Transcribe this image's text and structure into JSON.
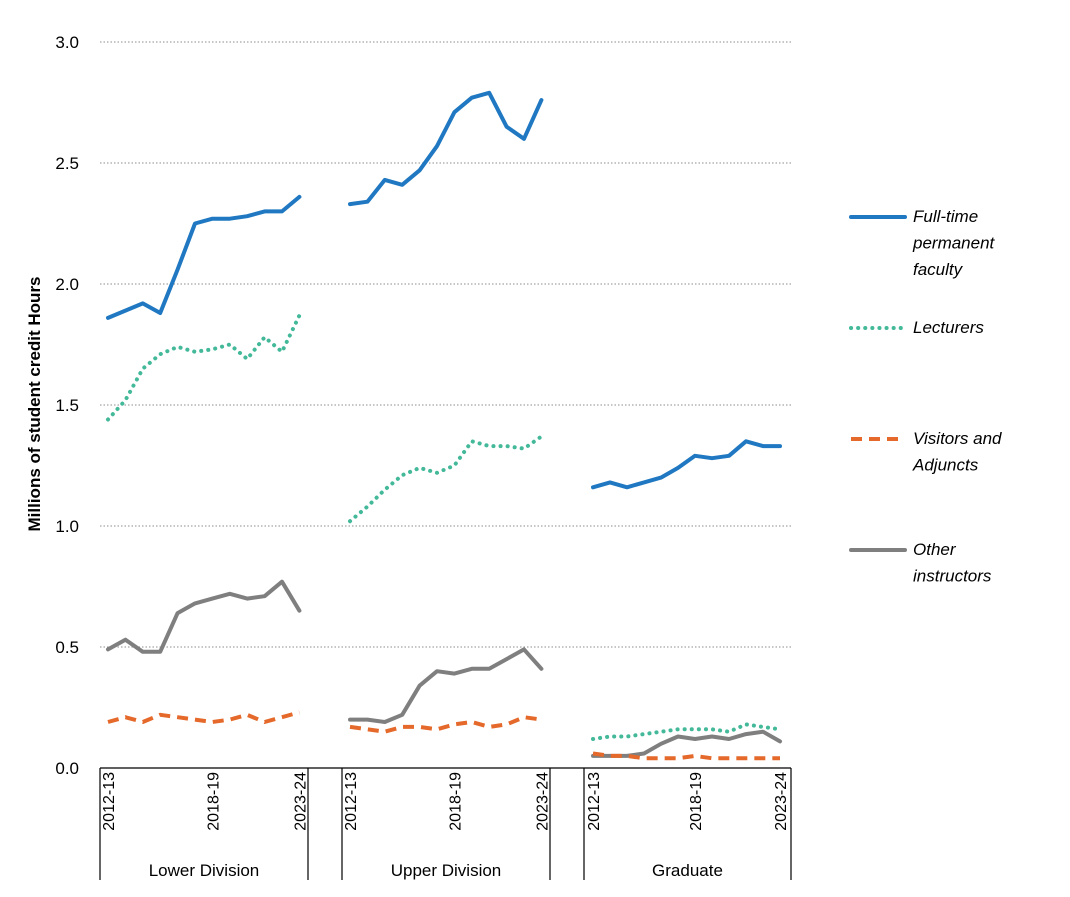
{
  "chart_data": {
    "type": "line",
    "title": "",
    "ylabel": "Millions of student credit Hours",
    "xlabel": "",
    "ylim": [
      0,
      3.0
    ],
    "yticks": [
      "0.0",
      "0.5",
      "1.0",
      "1.5",
      "2.0",
      "2.5",
      "3.0"
    ],
    "grid": "horizontal dotted",
    "legend_position": "right",
    "years": [
      "2012-13",
      "2013-14",
      "2014-15",
      "2015-16",
      "2016-17",
      "2017-18",
      "2018-19",
      "2019-20",
      "2020-21",
      "2021-22",
      "2022-23",
      "2023-24"
    ],
    "tick_labels_shown": [
      "2012-13",
      "2018-19",
      "2023-24"
    ],
    "groups": [
      {
        "name": "Lower Division",
        "series": [
          {
            "name": "Full-time permanent faculty",
            "values": [
              1.86,
              1.89,
              1.92,
              1.88,
              2.06,
              2.25,
              2.27,
              2.27,
              2.28,
              2.3,
              2.3,
              2.36
            ]
          },
          {
            "name": "Lecturers",
            "values": [
              1.44,
              1.52,
              1.65,
              1.71,
              1.74,
              1.72,
              1.73,
              1.75,
              1.69,
              1.78,
              1.72,
              1.87
            ]
          },
          {
            "name": "Visitors and Adjuncts",
            "values": [
              0.19,
              0.21,
              0.19,
              0.22,
              0.21,
              0.2,
              0.19,
              0.2,
              0.22,
              0.19,
              0.21,
              0.23
            ]
          },
          {
            "name": "Other instructors",
            "values": [
              0.49,
              0.53,
              0.48,
              0.48,
              0.64,
              0.68,
              0.7,
              0.72,
              0.7,
              0.71,
              0.77,
              0.65
            ]
          }
        ]
      },
      {
        "name": "Upper Division",
        "series": [
          {
            "name": "Full-time permanent faculty",
            "values": [
              2.33,
              2.34,
              2.43,
              2.41,
              2.47,
              2.57,
              2.71,
              2.77,
              2.79,
              2.65,
              2.6,
              2.76
            ]
          },
          {
            "name": "Lecturers",
            "values": [
              1.02,
              1.08,
              1.15,
              1.21,
              1.24,
              1.22,
              1.25,
              1.35,
              1.33,
              1.33,
              1.32,
              1.37
            ]
          },
          {
            "name": "Visitors and Adjuncts",
            "values": [
              0.17,
              0.16,
              0.15,
              0.17,
              0.17,
              0.16,
              0.18,
              0.19,
              0.17,
              0.18,
              0.21,
              0.2
            ]
          },
          {
            "name": "Other instructors",
            "values": [
              0.2,
              0.2,
              0.19,
              0.22,
              0.34,
              0.4,
              0.39,
              0.41,
              0.41,
              0.45,
              0.49,
              0.41
            ]
          }
        ]
      },
      {
        "name": "Graduate",
        "series": [
          {
            "name": "Full-time permanent faculty",
            "values": [
              1.16,
              1.18,
              1.16,
              1.18,
              1.2,
              1.24,
              1.29,
              1.28,
              1.29,
              1.35,
              1.33,
              1.33
            ]
          },
          {
            "name": "Lecturers",
            "values": [
              0.12,
              0.13,
              0.13,
              0.14,
              0.15,
              0.16,
              0.16,
              0.16,
              0.15,
              0.18,
              0.17,
              0.16
            ]
          },
          {
            "name": "Visitors and Adjuncts",
            "values": [
              0.06,
              0.05,
              0.05,
              0.04,
              0.04,
              0.04,
              0.05,
              0.04,
              0.04,
              0.04,
              0.04,
              0.04
            ]
          },
          {
            "name": "Other instructors",
            "values": [
              0.05,
              0.05,
              0.05,
              0.06,
              0.1,
              0.13,
              0.12,
              0.13,
              0.12,
              0.14,
              0.15,
              0.11
            ]
          }
        ]
      }
    ],
    "legend": [
      {
        "name": "Full-time permanent faculty",
        "lines": [
          "Full-time",
          "permanent",
          "faculty"
        ],
        "color": "#1f78c1",
        "style": "solid"
      },
      {
        "name": "Lecturers",
        "lines": [
          "Lecturers"
        ],
        "color": "#43b99a",
        "style": "dotted"
      },
      {
        "name": "Visitors and Adjuncts",
        "lines": [
          "Visitors and",
          "Adjuncts"
        ],
        "color": "#e4692a",
        "style": "dashed"
      },
      {
        "name": "Other instructors",
        "lines": [
          "Other",
          "instructors"
        ],
        "color": "#7f7f7f",
        "style": "solid"
      }
    ]
  }
}
